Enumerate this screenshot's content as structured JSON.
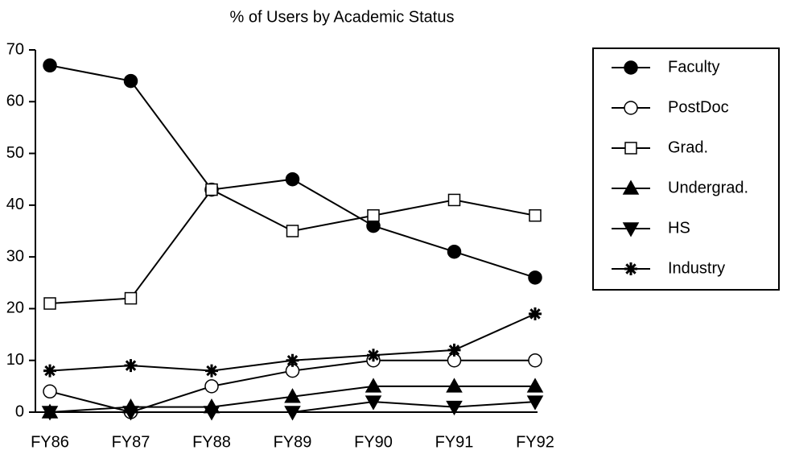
{
  "chart_data": {
    "type": "line",
    "title": "% of Users by Academic Status",
    "categories": [
      "FY86",
      "FY87",
      "FY88",
      "FY89",
      "FY90",
      "FY91",
      "FY92"
    ],
    "series": [
      {
        "name": "Faculty",
        "color": "#000000",
        "values": [
          67,
          64,
          43,
          45,
          36,
          31,
          26
        ]
      },
      {
        "name": "PostDoc",
        "color": "#000000",
        "values": [
          4,
          0,
          5,
          8,
          10,
          10,
          10
        ]
      },
      {
        "name": "Grad.",
        "color": "#000000",
        "values": [
          21,
          22,
          43,
          35,
          38,
          41,
          38
        ]
      },
      {
        "name": "Undergrad.",
        "color": "#000000",
        "values": [
          0,
          1,
          1,
          3,
          5,
          5,
          5
        ]
      },
      {
        "name": "HS",
        "color": "#000000",
        "values": [
          0,
          0,
          0,
          0,
          2,
          1,
          2
        ]
      },
      {
        "name": "Industry",
        "color": "#000000",
        "values": [
          8,
          9,
          8,
          10,
          11,
          12,
          19
        ]
      }
    ],
    "ylim": [
      0,
      70
    ],
    "yticks": [
      0,
      10,
      20,
      30,
      40,
      50,
      60,
      70
    ],
    "grid": false,
    "legend": "right"
  }
}
